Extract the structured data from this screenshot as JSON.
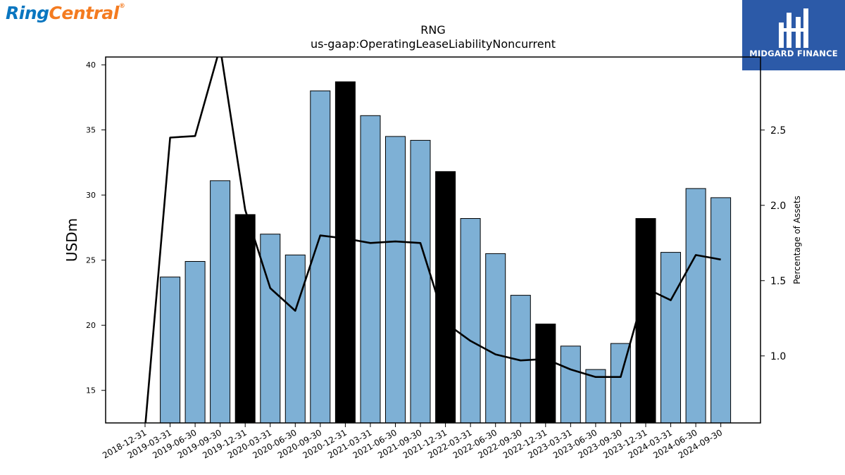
{
  "title": "RNG",
  "subtitle": "us-gaap:OperatingLeaseLiabilityNoncurrent",
  "logos": {
    "company_ring": "Ring",
    "company_central": "Central",
    "company_mark": "®",
    "finance": "MIDGARD FINANCE"
  },
  "chart_data": {
    "type": "bar",
    "categories": [
      "2018-12-31",
      "2019-03-31",
      "2019-06-30",
      "2019-09-30",
      "2019-12-31",
      "2020-03-31",
      "2020-06-30",
      "2020-09-30",
      "2020-12-31",
      "2021-03-31",
      "2021-06-30",
      "2021-09-30",
      "2021-12-31",
      "2022-03-31",
      "2022-06-30",
      "2022-09-30",
      "2022-12-31",
      "2023-03-31",
      "2023-06-30",
      "2023-09-30",
      "2023-12-31",
      "2024-03-31",
      "2024-06-30",
      "2024-09-30"
    ],
    "xlabel": "",
    "ylabel": "USDm",
    "y2label": "Percentage of Assets",
    "ylim": [
      12.5,
      40.6
    ],
    "y2lim": [
      0.555,
      2.985
    ],
    "yticks": [
      15,
      20,
      25,
      30,
      35,
      40
    ],
    "y2ticks": [
      1.0,
      1.5,
      2.0,
      2.5
    ],
    "series": [
      {
        "type": "bar",
        "values": [
          null,
          23.7,
          24.9,
          31.1,
          28.5,
          27.0,
          25.4,
          38.0,
          38.7,
          36.1,
          34.5,
          34.2,
          31.8,
          28.2,
          25.5,
          22.3,
          20.1,
          18.4,
          16.6,
          18.6,
          28.2,
          25.6,
          30.5,
          29.8
        ],
        "highlight": [
          false,
          false,
          false,
          false,
          true,
          false,
          false,
          false,
          true,
          false,
          false,
          false,
          true,
          false,
          false,
          false,
          true,
          false,
          false,
          false,
          true,
          false,
          false,
          false
        ],
        "color": "#7eb0d5",
        "highlight_color": "#000000"
      },
      {
        "type": "line",
        "axis": "right",
        "values": [
          0.52,
          2.45,
          2.46,
          3.05,
          1.97,
          1.45,
          1.3,
          1.8,
          1.78,
          1.75,
          1.76,
          1.75,
          1.22,
          1.1,
          1.01,
          0.97,
          0.98,
          0.91,
          0.86,
          0.86,
          1.45,
          1.37,
          1.67,
          1.64
        ],
        "color": "#000000"
      }
    ]
  }
}
